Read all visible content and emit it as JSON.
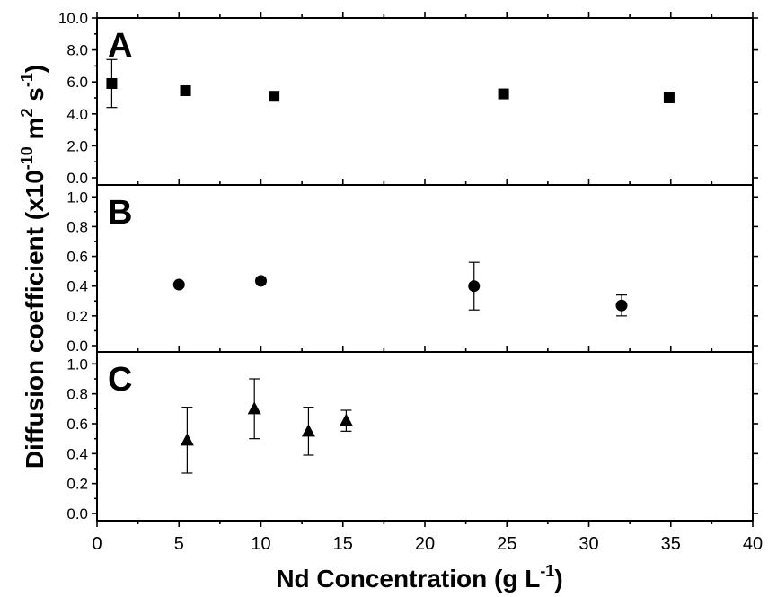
{
  "chart_data": {
    "type": "scatter",
    "xlabel": "Nd Concentration (g L",
    "xlabel_sup": "-1",
    "xlabel_end": ")",
    "ylabel": "Diffusion coefficient (x10",
    "ylabel_sup1": "-10",
    "ylabel_mid1": " m",
    "ylabel_sup2": "2",
    "ylabel_mid2": " s",
    "ylabel_sup3": "-1",
    "ylabel_end": ")",
    "xlim": [
      0,
      40
    ],
    "x_ticks": [
      "0",
      "5",
      "10",
      "15",
      "20",
      "25",
      "30",
      "35",
      "40"
    ],
    "panels": [
      {
        "label": "A",
        "marker": "square",
        "ylim": [
          0,
          10
        ],
        "y_ticks": [
          "0.0",
          "2.0",
          "4.0",
          "6.0",
          "8.0",
          "10.0"
        ],
        "points": [
          {
            "x": 0.9,
            "y": 5.9,
            "err": 1.5
          },
          {
            "x": 5.4,
            "y": 5.45,
            "err": 0.15
          },
          {
            "x": 10.8,
            "y": 5.1,
            "err": 0
          },
          {
            "x": 24.8,
            "y": 5.25,
            "err": 0
          },
          {
            "x": 34.9,
            "y": 5.0,
            "err": 0
          }
        ]
      },
      {
        "label": "B",
        "marker": "circle",
        "ylim": [
          0,
          1.08
        ],
        "y_ticks": [
          "0.0",
          "0.2",
          "0.4",
          "0.6",
          "0.8",
          "1.0"
        ],
        "points": [
          {
            "x": 5.0,
            "y": 0.41,
            "err": 0
          },
          {
            "x": 10.0,
            "y": 0.435,
            "err": 0
          },
          {
            "x": 23.0,
            "y": 0.4,
            "err": 0.16
          },
          {
            "x": 32.0,
            "y": 0.27,
            "err": 0.07
          }
        ]
      },
      {
        "label": "C",
        "marker": "triangle",
        "ylim": [
          0,
          1.08
        ],
        "y_ticks": [
          "0.0",
          "0.2",
          "0.4",
          "0.6",
          "0.8",
          "1.0"
        ],
        "points": [
          {
            "x": 5.5,
            "y": 0.49,
            "err": 0.22
          },
          {
            "x": 9.6,
            "y": 0.7,
            "err": 0.2
          },
          {
            "x": 12.9,
            "y": 0.55,
            "err": 0.16
          },
          {
            "x": 15.2,
            "y": 0.62,
            "err": 0.07
          }
        ]
      }
    ]
  }
}
